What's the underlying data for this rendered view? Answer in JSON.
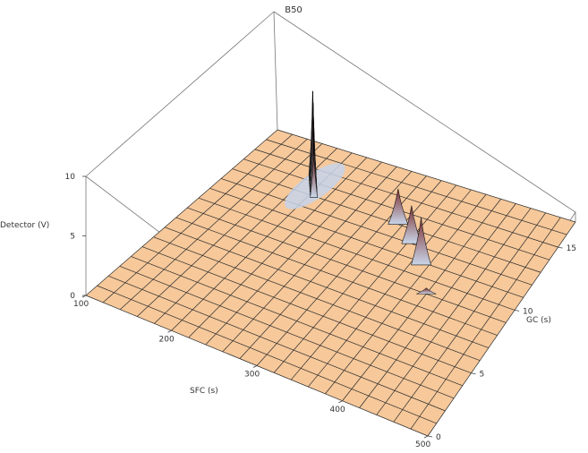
{
  "chart_data": {
    "type": "surface3d",
    "title": "B50",
    "xlabel": "SFC (s)",
    "ylabel": "GC (s)",
    "zlabel": "Detector (V)",
    "xlim": [
      100,
      500
    ],
    "ylim": [
      0,
      17
    ],
    "zlim": [
      0,
      10
    ],
    "x_ticks": [
      "100",
      "200",
      "300",
      "400",
      "500"
    ],
    "y_ticks": [
      "0",
      "5",
      "10",
      "15"
    ],
    "z_ticks": [
      "0",
      "5",
      "10"
    ],
    "colors": {
      "surface": "#f6c89a",
      "peak_low": "#c9d6ea",
      "peak_high": "#7a2d2d",
      "grid": "#2a2a2a"
    },
    "ridge_peaks": [
      {
        "x": 183,
        "y": 14.5,
        "z": 5.0
      },
      {
        "x": 186,
        "y": 14.3,
        "z": 6.0
      },
      {
        "x": 189,
        "y": 14.1,
        "z": 7.5
      },
      {
        "x": 192,
        "y": 13.9,
        "z": 6.5
      },
      {
        "x": 195,
        "y": 13.7,
        "z": 7.0
      },
      {
        "x": 198,
        "y": 13.5,
        "z": 6.0
      },
      {
        "x": 201,
        "y": 13.3,
        "z": 5.5
      },
      {
        "x": 204,
        "y": 13.1,
        "z": 4.5
      },
      {
        "x": 207,
        "y": 12.9,
        "z": 3.5
      }
    ],
    "peaks": [
      {
        "x": 315,
        "y": 13.0,
        "z": 3.0
      },
      {
        "x": 345,
        "y": 12.0,
        "z": 3.2
      },
      {
        "x": 372,
        "y": 10.8,
        "z": 4.0
      },
      {
        "x": 400,
        "y": 9.0,
        "z": 0.5
      }
    ]
  }
}
